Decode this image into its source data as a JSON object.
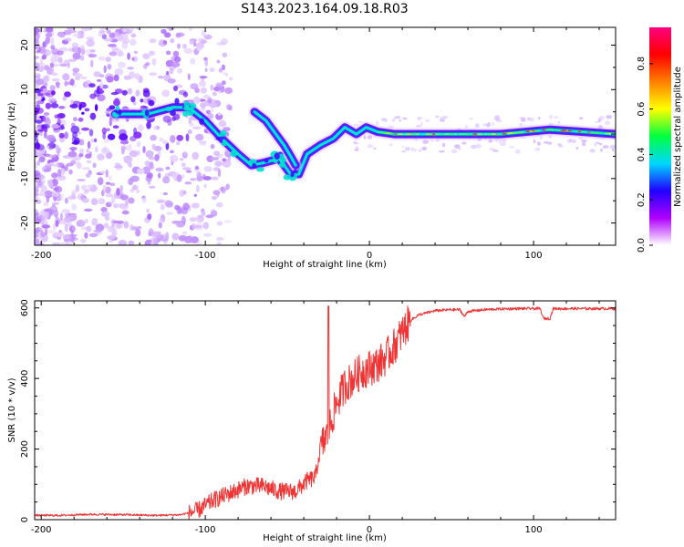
{
  "title": "S143.2023.164.09.18.R03",
  "colors": {
    "trace": "#f03434",
    "ridge_mid": "#00e5d0",
    "ridge_edge": "#5a00ff",
    "ridge_peak": "#ff2020",
    "speckle": "#a070ff"
  },
  "chart_data": [
    {
      "type": "heatmap",
      "xlabel": "Height of straight line (km)",
      "ylabel": "Frequency (Hz)",
      "xlim": [
        -204,
        150
      ],
      "ylim": [
        -25,
        24
      ],
      "xticks": [
        -200,
        -100,
        0,
        100
      ],
      "yticks": [
        20,
        10,
        0,
        -10,
        -20
      ],
      "colorbar": {
        "label": "Normalized spectral amplitude",
        "range": [
          0,
          0.96
        ],
        "ticks": [
          0.0,
          0.2,
          0.4,
          0.6,
          0.8
        ],
        "tick_labels": [
          "0.0",
          "0.2",
          "0.4",
          "0.6",
          "0.8"
        ],
        "colormap": [
          "#ffffff",
          "#b000ff",
          "#2000ff",
          "#00d8ff",
          "#00ff40",
          "#ffff00",
          "#ff8000",
          "#ff0000",
          "#ff0080"
        ]
      },
      "ridges": [
        {
          "name": "",
          "x": [
            -155,
            -135,
            -120,
            -110,
            -100,
            -90,
            -80,
            -72,
            -65,
            -55,
            -48,
            -43,
            -38,
            -30,
            -22,
            -15,
            -8,
            -2,
            5,
            15,
            40,
            80,
            110,
            130,
            150
          ],
          "y": [
            4.5,
            4.5,
            6,
            6,
            3,
            -1,
            -4.5,
            -7,
            -6.5,
            -5.5,
            -9,
            -9,
            -4.5,
            -2.5,
            -1,
            1.5,
            0,
            1.5,
            0.5,
            0,
            0,
            0,
            1,
            0.5,
            0
          ]
        },
        {
          "name": "",
          "x": [
            -70,
            -63,
            -57,
            -52,
            -48,
            -45
          ],
          "y": [
            5,
            3,
            0,
            -2.5,
            -5,
            -7
          ]
        }
      ]
    },
    {
      "type": "line",
      "xlabel": "Height of straight line (km)",
      "ylabel": "SNR (10 * v/v)",
      "xlim": [
        -204,
        150
      ],
      "ylim": [
        0,
        620
      ],
      "xticks": [
        -200,
        -100,
        0,
        100
      ],
      "yticks": [
        0,
        200,
        400,
        600
      ],
      "series": [
        {
          "name": "",
          "x": [
            -204,
            -190,
            -170,
            -150,
            -130,
            -115,
            -105,
            -95,
            -85,
            -75,
            -65,
            -55,
            -45,
            -38,
            -33,
            -30,
            -27,
            -25,
            -20,
            -15,
            -10,
            -5,
            0,
            5,
            10,
            15,
            20,
            25,
            30,
            40,
            50,
            55,
            58,
            60,
            70,
            80,
            90,
            100,
            104,
            106,
            110,
            112,
            120,
            130,
            140,
            150
          ],
          "y": [
            12,
            12,
            15,
            14,
            12,
            14,
            25,
            55,
            75,
            95,
            95,
            80,
            80,
            110,
            120,
            200,
            230,
            250,
            330,
            380,
            400,
            420,
            430,
            440,
            460,
            490,
            530,
            565,
            580,
            592,
            595,
            595,
            575,
            590,
            595,
            597,
            598,
            598,
            598,
            570,
            570,
            598,
            598,
            598,
            598,
            598
          ],
          "spikes": [
            {
              "x": -25,
              "y": 605
            }
          ]
        }
      ]
    }
  ]
}
